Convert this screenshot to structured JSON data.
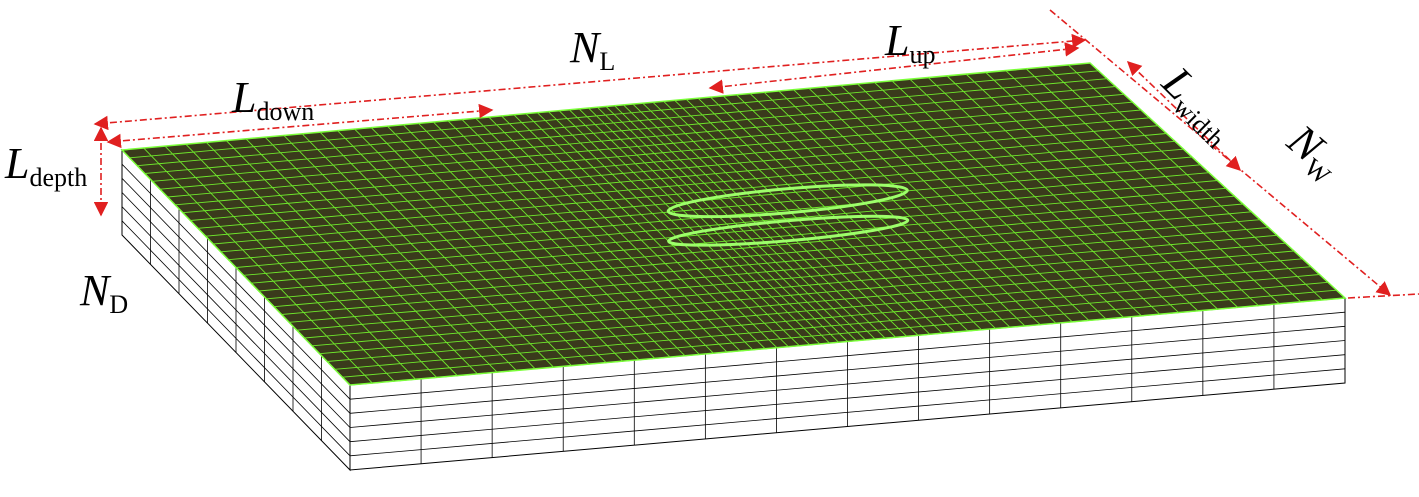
{
  "labels": [
    {
      "main": "N",
      "sub": "L"
    },
    {
      "main": "L",
      "sub": "down"
    },
    {
      "main": "L",
      "sub": "up"
    },
    {
      "main": "L",
      "sub": "width"
    },
    {
      "main": "N",
      "sub": "W"
    },
    {
      "main": "L",
      "sub": "depth"
    },
    {
      "main": "N",
      "sub": "D"
    }
  ]
}
